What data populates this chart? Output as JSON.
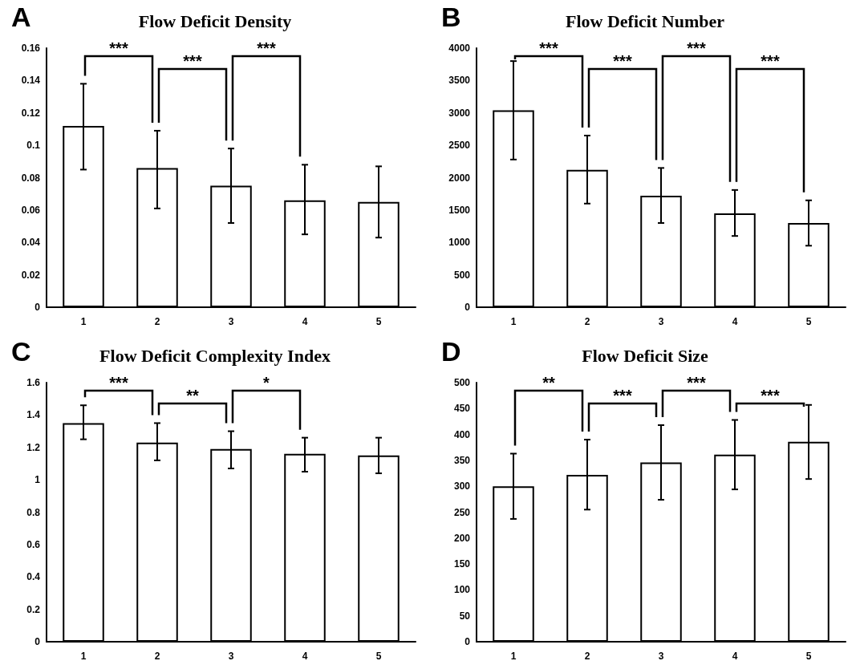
{
  "chart_data": [
    {
      "type": "bar",
      "title": "Flow Deficit Density",
      "categories": [
        "1",
        "2",
        "3",
        "4",
        "5"
      ],
      "values": [
        0.112,
        0.086,
        0.075,
        0.066,
        0.065
      ],
      "color": "#ffffff",
      "errors": [
        [
          0.085,
          0.138
        ],
        [
          0.061,
          0.109
        ],
        [
          0.052,
          0.098
        ],
        [
          0.045,
          0.088
        ],
        [
          0.043,
          0.087
        ]
      ],
      "ylim": [
        0,
        0.16
      ],
      "yticks": [
        0,
        0.02,
        0.04,
        0.06,
        0.08,
        0.1,
        0.12,
        0.14,
        0.16
      ],
      "grid": false,
      "annotations": [
        "A",
        "***",
        "***",
        "***"
      ]
    },
    {
      "type": "bar",
      "title": "Flow Deficit Number",
      "categories": [
        "1",
        "2",
        "3",
        "4",
        "5"
      ],
      "values": [
        3040,
        2120,
        1720,
        1450,
        1300
      ],
      "color": "#ffffff",
      "errors": [
        [
          2280,
          3800
        ],
        [
          1600,
          2650
        ],
        [
          1300,
          2150
        ],
        [
          1100,
          1810
        ],
        [
          950,
          1650
        ]
      ],
      "ylim": [
        0,
        4000
      ],
      "yticks": [
        0,
        500,
        1000,
        1500,
        2000,
        2500,
        3000,
        3500,
        4000
      ],
      "grid": false,
      "annotations": [
        "B",
        "***",
        "***",
        "***",
        "***"
      ]
    },
    {
      "type": "bar",
      "title": "Flow Deficit Complexity Index",
      "categories": [
        "1",
        "2",
        "3",
        "4",
        "5"
      ],
      "values": [
        1.35,
        1.23,
        1.19,
        1.16,
        1.15
      ],
      "color": "#ffffff",
      "errors": [
        [
          1.25,
          1.46
        ],
        [
          1.12,
          1.35
        ],
        [
          1.07,
          1.3
        ],
        [
          1.05,
          1.26
        ],
        [
          1.04,
          1.26
        ]
      ],
      "ylim": [
        0,
        1.6
      ],
      "yticks": [
        0,
        0.2,
        0.4,
        0.6,
        0.8,
        1,
        1.2,
        1.4,
        1.6
      ],
      "grid": false,
      "annotations": [
        "C",
        "***",
        "**",
        "*"
      ]
    },
    {
      "type": "bar",
      "title": "Flow Deficit Size",
      "categories": [
        "1",
        "2",
        "3",
        "4",
        "5"
      ],
      "values": [
        300,
        322,
        346,
        361,
        386
      ],
      "color": "#ffffff",
      "errors": [
        [
          237,
          363
        ],
        [
          255,
          390
        ],
        [
          274,
          418
        ],
        [
          294,
          428
        ],
        [
          314,
          457
        ]
      ],
      "ylim": [
        0,
        500
      ],
      "yticks": [
        0,
        50,
        100,
        150,
        200,
        250,
        300,
        350,
        400,
        450,
        500
      ],
      "grid": false,
      "annotations": [
        "D",
        "**",
        "***",
        "***",
        "***"
      ]
    }
  ]
}
